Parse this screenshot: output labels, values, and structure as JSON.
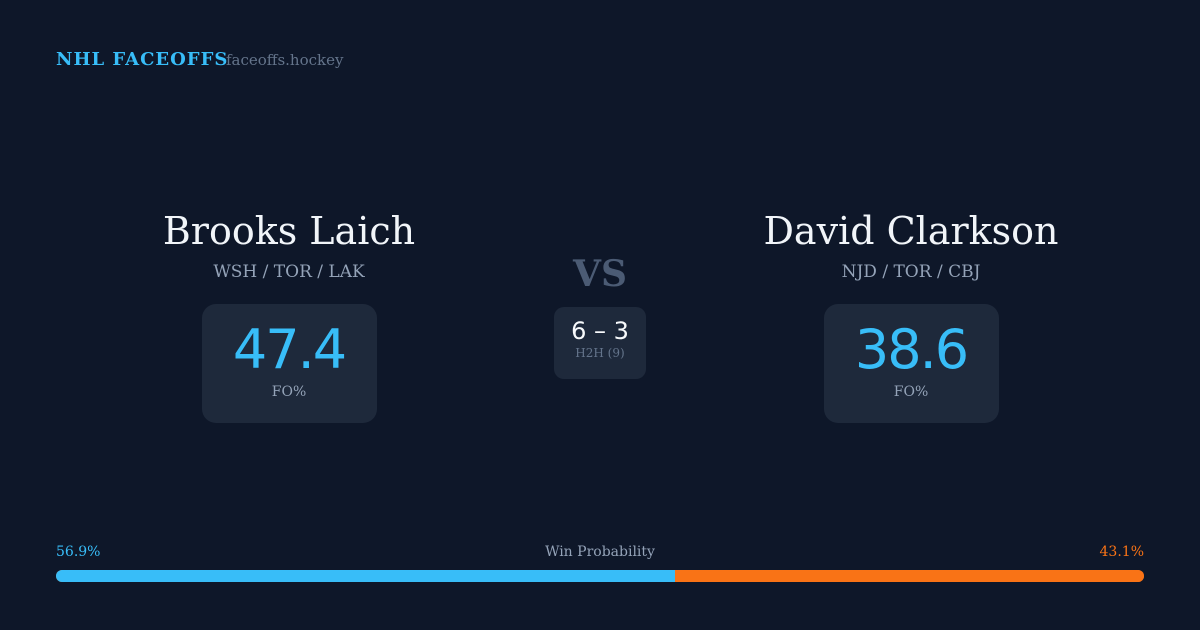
{
  "header": {
    "brand": "NHL FACEOFFS",
    "site": "faceoffs.hockey"
  },
  "players": [
    {
      "name": "Brooks Laich",
      "teams": "WSH / TOR / LAK",
      "fo_pct": "47.4",
      "fo_label": "FO%"
    },
    {
      "name": "David Clarkson",
      "teams": "NJD / TOR / CBJ",
      "fo_pct": "38.6",
      "fo_label": "FO%"
    }
  ],
  "vs": "VS",
  "h2h": {
    "score": "6 – 3",
    "caption": "H2H (9)"
  },
  "win_probability": {
    "label": "Win Probability",
    "left": "56.9%",
    "right": "43.1%",
    "left_value": 56.9,
    "right_value": 43.1
  },
  "colors": {
    "background": "#0e1729",
    "card": "#1e293b",
    "accent": "#38bdf8",
    "opponent": "#f97316"
  }
}
